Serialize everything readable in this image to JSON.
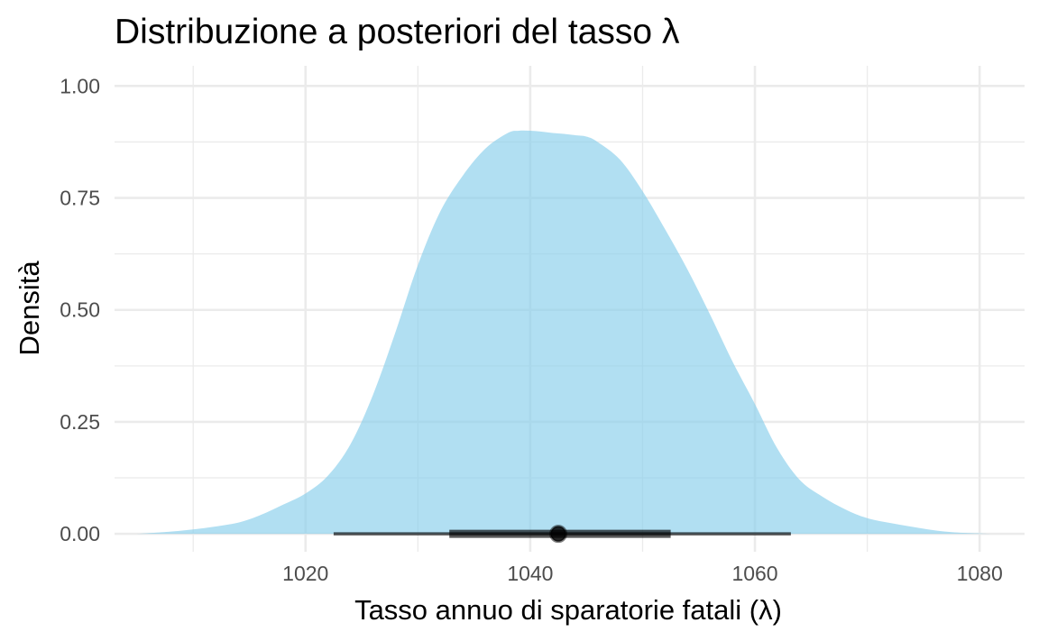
{
  "chart_data": {
    "type": "area",
    "title": "Distribuzione a posteriori del tasso λ",
    "xlabel": "Tasso annuo di sparatorie fatali (λ)",
    "ylabel": "Densità",
    "xlim": [
      1003,
      1084
    ],
    "ylim": [
      -0.04,
      1.045
    ],
    "x_ticks": [
      1020,
      1040,
      1060,
      1080
    ],
    "y_ticks": [
      0,
      0.25,
      0.5,
      0.75,
      1.0
    ],
    "x_tick_labels": [
      "1020",
      "1040",
      "1060",
      "1080"
    ],
    "y_tick_labels": [
      "0.00",
      "0.25",
      "0.50",
      "0.75",
      "1.00"
    ],
    "grid": true,
    "fill_color": "#87ceeb",
    "interval_color": "#000000",
    "density": {
      "x": [
        1005,
        1008,
        1011,
        1014,
        1016,
        1018,
        1020,
        1022,
        1024,
        1026,
        1028,
        1030,
        1032,
        1034,
        1036,
        1038,
        1039,
        1040,
        1041,
        1042,
        1043,
        1044,
        1045,
        1046,
        1048,
        1050,
        1052,
        1054,
        1056,
        1058,
        1060,
        1062,
        1064,
        1066,
        1068,
        1070,
        1073,
        1076,
        1078,
        1080,
        1081
      ],
      "y": [
        0.0,
        0.005,
        0.013,
        0.025,
        0.042,
        0.065,
        0.09,
        0.13,
        0.2,
        0.31,
        0.45,
        0.6,
        0.72,
        0.8,
        0.86,
        0.895,
        0.9,
        0.9,
        0.898,
        0.895,
        0.893,
        0.89,
        0.887,
        0.875,
        0.835,
        0.765,
        0.68,
        0.59,
        0.49,
        0.385,
        0.29,
        0.19,
        0.12,
        0.083,
        0.055,
        0.035,
        0.02,
        0.008,
        0.003,
        0.001,
        0.0
      ]
    },
    "point_estimate": 1042.5,
    "interval_thick": [
      1032.8,
      1052.5
    ],
    "interval_thin": [
      1022.5,
      1063.2
    ]
  }
}
